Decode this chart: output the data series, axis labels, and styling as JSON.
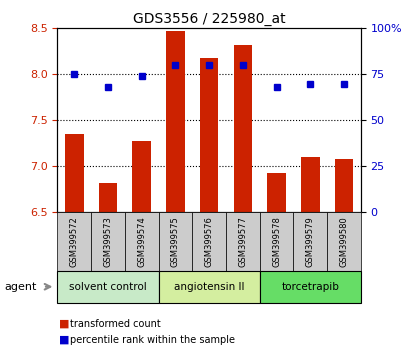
{
  "title": "GDS3556 / 225980_at",
  "samples": [
    "GSM399572",
    "GSM399573",
    "GSM399574",
    "GSM399575",
    "GSM399576",
    "GSM399577",
    "GSM399578",
    "GSM399579",
    "GSM399580"
  ],
  "bar_values": [
    7.35,
    6.82,
    7.28,
    8.47,
    8.18,
    8.32,
    6.93,
    7.1,
    7.08
  ],
  "percentile_values": [
    75,
    68,
    74,
    80,
    80,
    80,
    68,
    70,
    70
  ],
  "ylim_left": [
    6.5,
    8.5
  ],
  "ylim_right": [
    0,
    100
  ],
  "yticks_left": [
    6.5,
    7.0,
    7.5,
    8.0,
    8.5
  ],
  "yticks_right": [
    0,
    25,
    50,
    75,
    100
  ],
  "bar_color": "#cc2200",
  "dot_color": "#0000cc",
  "bar_bottom": 6.5,
  "groups": [
    {
      "label": "solvent control",
      "indices": [
        0,
        1,
        2
      ],
      "color": "#c8eac8"
    },
    {
      "label": "angiotensin II",
      "indices": [
        3,
        4,
        5
      ],
      "color": "#d4eea0"
    },
    {
      "label": "torcetrapib",
      "indices": [
        6,
        7,
        8
      ],
      "color": "#66dd66"
    }
  ],
  "sample_box_color": "#cccccc",
  "agent_label": "agent",
  "legend_bar_label": "transformed count",
  "legend_dot_label": "percentile rank within the sample",
  "tick_label_color_left": "#cc2200",
  "tick_label_color_right": "#0000cc",
  "grid_yticks": [
    7.0,
    7.5,
    8.0
  ]
}
